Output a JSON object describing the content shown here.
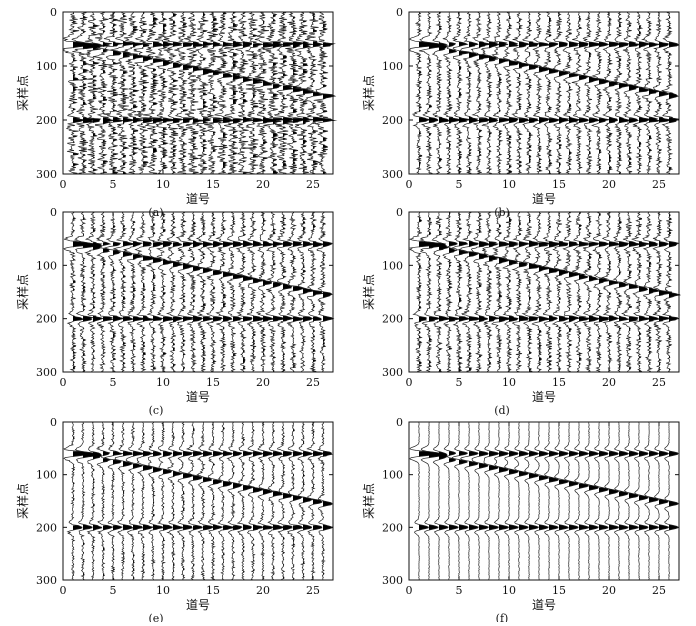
{
  "figure": {
    "panels": [
      "(a)",
      "(b)",
      "(c)",
      "(d)",
      "(e)",
      "(f)"
    ]
  },
  "chart_data": [
    {
      "type": "wiggle",
      "caption": "(a)",
      "xlabel": "道号",
      "ylabel": "采样点",
      "xlim": [
        0,
        27
      ],
      "ylim": [
        300,
        0
      ],
      "x_ticks": [
        "0",
        "5",
        "10",
        "15",
        "20",
        "25"
      ],
      "y_ticks": [
        "0",
        "100",
        "200",
        "300"
      ],
      "trace_count": 26,
      "events": [
        {
          "name": "horizontal-60",
          "from_trace": 1,
          "to_trace": 26,
          "start_sample": 60,
          "end_sample": 60
        },
        {
          "name": "dipping",
          "from_trace": 1,
          "to_trace": 26,
          "start_sample": 60,
          "end_sample": 155
        },
        {
          "name": "horizontal-200",
          "from_trace": 1,
          "to_trace": 26,
          "start_sample": 200,
          "end_sample": 200
        }
      ],
      "noise": "strong"
    },
    {
      "type": "wiggle",
      "caption": "(b)",
      "xlabel": "道号",
      "ylabel": "采样点",
      "xlim": [
        0,
        27
      ],
      "ylim": [
        300,
        0
      ],
      "x_ticks": [
        "0",
        "5",
        "10",
        "15",
        "20",
        "25"
      ],
      "y_ticks": [
        "0",
        "100",
        "200",
        "300"
      ],
      "trace_count": 26,
      "events": [
        {
          "name": "horizontal-60",
          "from_trace": 1,
          "to_trace": 26,
          "start_sample": 60,
          "end_sample": 60
        },
        {
          "name": "dipping",
          "from_trace": 1,
          "to_trace": 26,
          "start_sample": 60,
          "end_sample": 155
        },
        {
          "name": "horizontal-200",
          "from_trace": 1,
          "to_trace": 26,
          "start_sample": 200,
          "end_sample": 200
        }
      ],
      "noise": "moderate"
    },
    {
      "type": "wiggle",
      "caption": "(c)",
      "xlabel": "道号",
      "ylabel": "采样点",
      "xlim": [
        0,
        27
      ],
      "ylim": [
        300,
        0
      ],
      "x_ticks": [
        "0",
        "5",
        "10",
        "15",
        "20",
        "25"
      ],
      "y_ticks": [
        "0",
        "100",
        "200",
        "300"
      ],
      "trace_count": 26,
      "events": [
        {
          "name": "horizontal-60",
          "from_trace": 1,
          "to_trace": 26,
          "start_sample": 60,
          "end_sample": 60
        },
        {
          "name": "dipping",
          "from_trace": 1,
          "to_trace": 26,
          "start_sample": 60,
          "end_sample": 155
        },
        {
          "name": "horizontal-200",
          "from_trace": 1,
          "to_trace": 26,
          "start_sample": 200,
          "end_sample": 200
        }
      ],
      "noise": "moderate"
    },
    {
      "type": "wiggle",
      "caption": "(d)",
      "xlabel": "道号",
      "ylabel": "采样点",
      "xlim": [
        0,
        27
      ],
      "ylim": [
        300,
        0
      ],
      "x_ticks": [
        "0",
        "5",
        "10",
        "15",
        "20",
        "25"
      ],
      "y_ticks": [
        "0",
        "100",
        "200",
        "300"
      ],
      "trace_count": 26,
      "events": [
        {
          "name": "horizontal-60",
          "from_trace": 1,
          "to_trace": 26,
          "start_sample": 60,
          "end_sample": 60
        },
        {
          "name": "dipping",
          "from_trace": 1,
          "to_trace": 26,
          "start_sample": 60,
          "end_sample": 155
        },
        {
          "name": "horizontal-200",
          "from_trace": 1,
          "to_trace": 26,
          "start_sample": 200,
          "end_sample": 200
        }
      ],
      "noise": "moderate"
    },
    {
      "type": "wiggle",
      "caption": "(e)",
      "xlabel": "道号",
      "ylabel": "采样点",
      "xlim": [
        0,
        27
      ],
      "ylim": [
        300,
        0
      ],
      "x_ticks": [
        "0",
        "5",
        "10",
        "15",
        "20",
        "25"
      ],
      "y_ticks": [
        "0",
        "100",
        "200",
        "300"
      ],
      "trace_count": 26,
      "events": [
        {
          "name": "horizontal-60",
          "from_trace": 1,
          "to_trace": 26,
          "start_sample": 60,
          "end_sample": 60
        },
        {
          "name": "dipping",
          "from_trace": 1,
          "to_trace": 26,
          "start_sample": 60,
          "end_sample": 155
        },
        {
          "name": "horizontal-200",
          "from_trace": 1,
          "to_trace": 26,
          "start_sample": 200,
          "end_sample": 200
        }
      ],
      "noise": "low"
    },
    {
      "type": "wiggle",
      "caption": "(f)",
      "xlabel": "道号",
      "ylabel": "采样点",
      "xlim": [
        0,
        27
      ],
      "ylim": [
        300,
        0
      ],
      "x_ticks": [
        "0",
        "5",
        "10",
        "15",
        "20",
        "25"
      ],
      "y_ticks": [
        "0",
        "100",
        "200",
        "300"
      ],
      "trace_count": 26,
      "events": [
        {
          "name": "horizontal-60",
          "from_trace": 1,
          "to_trace": 26,
          "start_sample": 60,
          "end_sample": 60
        },
        {
          "name": "dipping",
          "from_trace": 1,
          "to_trace": 26,
          "start_sample": 60,
          "end_sample": 155
        },
        {
          "name": "horizontal-200",
          "from_trace": 1,
          "to_trace": 26,
          "start_sample": 200,
          "end_sample": 200
        }
      ],
      "noise": "none"
    }
  ]
}
